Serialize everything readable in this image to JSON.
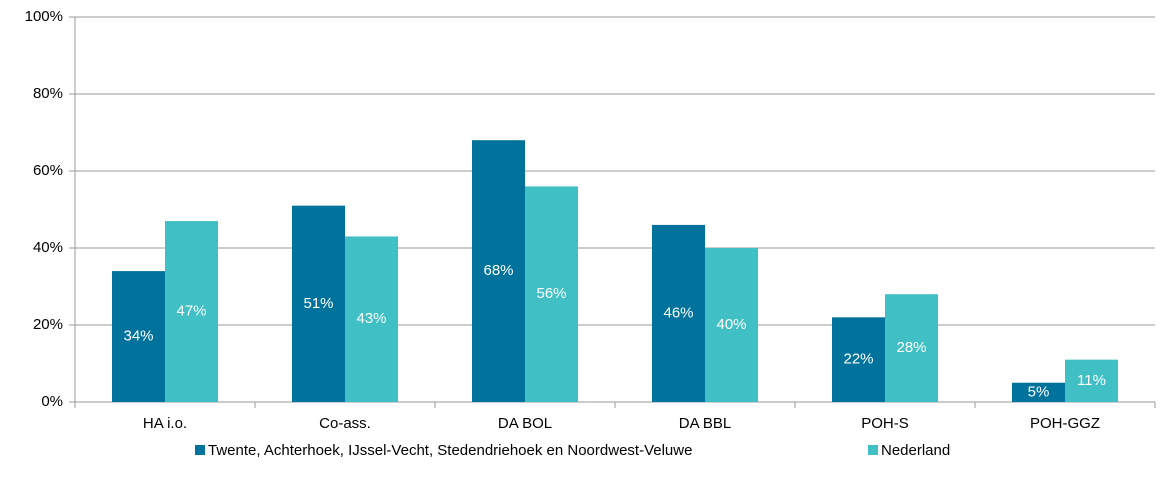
{
  "chart_data": {
    "type": "bar",
    "categories": [
      "HA i.o.",
      "Co-ass.",
      "DA BOL",
      "DA BBL",
      "POH-S",
      "POH-GGZ"
    ],
    "series": [
      {
        "name": "Twente, Achterhoek, IJssel-Vecht, Stedendriehoek en Noordwest-Veluwe",
        "color": "#00729c",
        "values": [
          34,
          51,
          68,
          46,
          22,
          5
        ],
        "value_labels": [
          "34%",
          "51%",
          "68%",
          "46%",
          "22%",
          "5%"
        ]
      },
      {
        "name": "Nederland",
        "color": "#40c0c4",
        "values": [
          47,
          43,
          56,
          40,
          28,
          11
        ],
        "value_labels": [
          "47%",
          "43%",
          "56%",
          "40%",
          "28%",
          "11%"
        ]
      }
    ],
    "ylim": [
      0,
      100
    ],
    "yticks": [
      {
        "value": 0,
        "label": "0%"
      },
      {
        "value": 20,
        "label": "20%"
      },
      {
        "value": 40,
        "label": "40%"
      },
      {
        "value": 60,
        "label": "60%"
      },
      {
        "value": 80,
        "label": "80%"
      },
      {
        "value": 100,
        "label": "100%"
      }
    ],
    "grid": true
  }
}
